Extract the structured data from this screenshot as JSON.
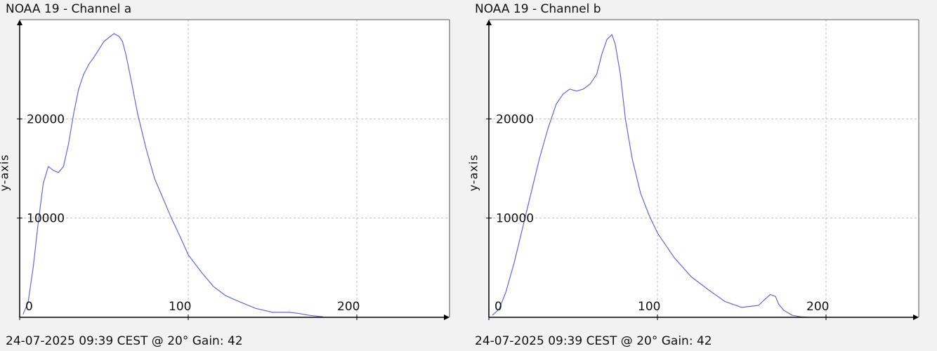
{
  "chart_data": [
    {
      "type": "line",
      "title": "NOAA 19 - Channel a",
      "footer": "24-07-2025 09:39 CEST @ 20° Gain: 42",
      "xlabel": "",
      "ylabel": "y-axis",
      "xlim": [
        0,
        255
      ],
      "ylim": [
        0,
        30000
      ],
      "x_ticks": [
        0,
        100,
        200
      ],
      "y_ticks": [
        10000,
        20000
      ],
      "grid": true,
      "line_color": "#6464e6",
      "series": [
        {
          "x": [
            2,
            5,
            8,
            11,
            14,
            17,
            20,
            23,
            26,
            29,
            32,
            35,
            38,
            41,
            44,
            47,
            50,
            53,
            56,
            59,
            61,
            63,
            66,
            70,
            75,
            80,
            85,
            90,
            95,
            100,
            108,
            115,
            122,
            130,
            140,
            150,
            160,
            165,
            172,
            180
          ],
          "y": [
            300,
            1500,
            5000,
            9500,
            13500,
            15200,
            14800,
            14600,
            15200,
            17500,
            20500,
            23000,
            24500,
            25500,
            26200,
            27000,
            27800,
            28200,
            28600,
            28300,
            27800,
            26500,
            24000,
            20500,
            17000,
            14000,
            12000,
            10000,
            8200,
            6300,
            4500,
            3100,
            2200,
            1600,
            900,
            500,
            500,
            400,
            200,
            50
          ]
        }
      ]
    },
    {
      "type": "line",
      "title": "NOAA 19 - Channel b",
      "footer": "24-07-2025 09:39 CEST @ 20° Gain: 42",
      "xlabel": "",
      "ylabel": "y-axis",
      "xlim": [
        0,
        255
      ],
      "ylim": [
        0,
        30000
      ],
      "x_ticks": [
        0,
        100,
        200
      ],
      "y_ticks": [
        10000,
        20000
      ],
      "grid": true,
      "line_color": "#6464e6",
      "series": [
        {
          "x": [
            2,
            6,
            10,
            15,
            20,
            25,
            30,
            35,
            40,
            44,
            48,
            52,
            56,
            60,
            64,
            67,
            70,
            73,
            75,
            78,
            81,
            85,
            90,
            95,
            100,
            110,
            120,
            130,
            140,
            150,
            160,
            163,
            167,
            170,
            172,
            175,
            180,
            185,
            190
          ],
          "y": [
            200,
            800,
            2500,
            5500,
            9000,
            12500,
            16000,
            19000,
            21500,
            22500,
            23000,
            22800,
            23000,
            23500,
            24500,
            26500,
            28000,
            28500,
            27500,
            24500,
            20000,
            16000,
            12500,
            10300,
            8500,
            6000,
            4100,
            2800,
            1600,
            1000,
            1200,
            1700,
            2300,
            2100,
            1300,
            700,
            200,
            50,
            0
          ]
        }
      ]
    }
  ]
}
